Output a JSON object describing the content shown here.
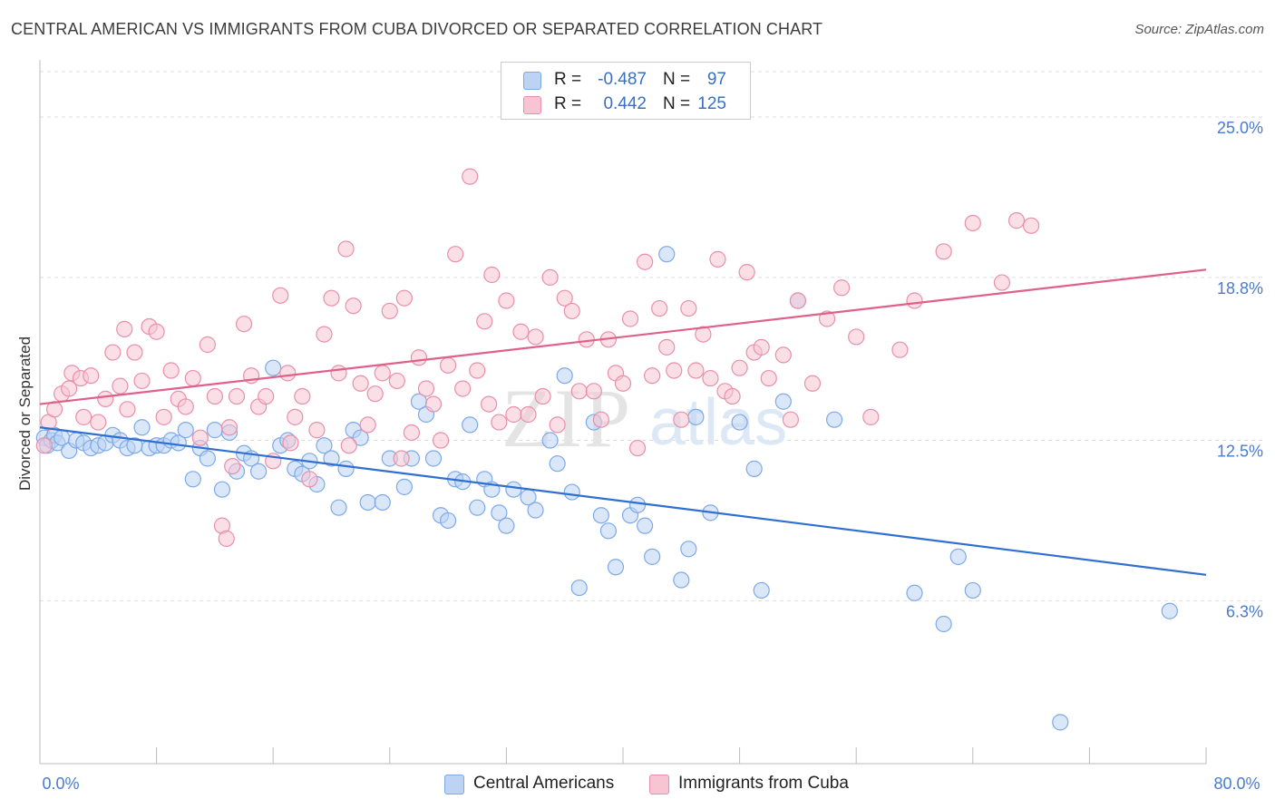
{
  "title": "CENTRAL AMERICAN VS IMMIGRANTS FROM CUBA DIVORCED OR SEPARATED CORRELATION CHART",
  "source": "Source: ZipAtlas.com",
  "watermark": {
    "zip": "ZIP",
    "atlas": "atlas"
  },
  "stats": [
    {
      "r_label": "R =",
      "r_value": "-0.487",
      "n_label": "N =",
      "n_value": "97",
      "color": "#7ea9e8",
      "fill": "#bcd3f3"
    },
    {
      "r_label": "R =",
      "r_value": "0.442",
      "n_label": "N =",
      "n_value": "125",
      "color": "#e98fab",
      "fill": "#f7c4d3"
    }
  ],
  "legend": [
    {
      "label": "Central Americans",
      "color": "#7ea9e8",
      "fill": "#bcd3f3"
    },
    {
      "label": "Immigrants from Cuba",
      "color": "#e98fab",
      "fill": "#f7c4d3"
    }
  ],
  "chart_data": {
    "type": "scatter",
    "title": "CENTRAL AMERICAN VS IMMIGRANTS FROM CUBA DIVORCED OR SEPARATED CORRELATION CHART",
    "xlabel": "",
    "ylabel": "Divorced or Separated",
    "xlim": [
      0,
      80
    ],
    "ylim": [
      0,
      27
    ],
    "x_tick_labels": [
      "0.0%",
      "80.0%"
    ],
    "y_ticks": [
      25.0,
      18.8,
      12.5,
      6.3
    ],
    "y_tick_labels": [
      "25.0%",
      "18.8%",
      "12.5%",
      "6.3%"
    ],
    "grid": "horizontal dashed",
    "legend_position": "bottom-center",
    "series": [
      {
        "name": "Central Americans",
        "color": "#7ea9e8",
        "fill": "#bcd3f3",
        "line_color": "#2f6fd1",
        "trend": {
          "x": [
            0,
            80
          ],
          "y": [
            13.0,
            7.3
          ]
        },
        "points": [
          [
            0.3,
            12.6
          ],
          [
            0.5,
            12.3
          ],
          [
            0.8,
            12.5
          ],
          [
            1.0,
            12.7
          ],
          [
            1.2,
            12.4
          ],
          [
            1.5,
            12.6
          ],
          [
            2.0,
            12.1
          ],
          [
            2.5,
            12.5
          ],
          [
            3.0,
            12.4
          ],
          [
            3.5,
            12.2
          ],
          [
            4.0,
            12.3
          ],
          [
            4.5,
            12.4
          ],
          [
            5.0,
            12.7
          ],
          [
            5.5,
            12.5
          ],
          [
            6.0,
            12.2
          ],
          [
            6.5,
            12.3
          ],
          [
            7.0,
            13.0
          ],
          [
            7.5,
            12.2
          ],
          [
            8.0,
            12.3
          ],
          [
            8.5,
            12.3
          ],
          [
            9.0,
            12.5
          ],
          [
            9.5,
            12.4
          ],
          [
            10.0,
            12.9
          ],
          [
            10.5,
            11.0
          ],
          [
            11.0,
            12.2
          ],
          [
            11.5,
            11.8
          ],
          [
            12.0,
            12.9
          ],
          [
            12.5,
            10.6
          ],
          [
            13.0,
            12.8
          ],
          [
            13.5,
            11.3
          ],
          [
            14.0,
            12.0
          ],
          [
            14.5,
            11.8
          ],
          [
            15.0,
            11.3
          ],
          [
            16.0,
            15.3
          ],
          [
            16.5,
            12.3
          ],
          [
            17.0,
            12.5
          ],
          [
            17.5,
            11.4
          ],
          [
            18.0,
            11.2
          ],
          [
            18.5,
            11.7
          ],
          [
            19.0,
            10.8
          ],
          [
            19.5,
            12.3
          ],
          [
            20.0,
            11.8
          ],
          [
            20.5,
            9.9
          ],
          [
            21.0,
            11.4
          ],
          [
            21.5,
            12.9
          ],
          [
            22.0,
            12.6
          ],
          [
            22.5,
            10.1
          ],
          [
            23.5,
            10.1
          ],
          [
            24.0,
            11.8
          ],
          [
            25.0,
            10.7
          ],
          [
            25.5,
            11.8
          ],
          [
            26.0,
            14.0
          ],
          [
            26.5,
            13.5
          ],
          [
            27.0,
            11.8
          ],
          [
            27.5,
            9.6
          ],
          [
            28.0,
            9.4
          ],
          [
            28.5,
            11.0
          ],
          [
            29.0,
            10.9
          ],
          [
            30.0,
            9.9
          ],
          [
            30.5,
            11.0
          ],
          [
            31.0,
            10.6
          ],
          [
            31.5,
            9.7
          ],
          [
            32.0,
            9.2
          ],
          [
            32.5,
            10.6
          ],
          [
            33.5,
            10.3
          ],
          [
            34.0,
            9.8
          ],
          [
            35.0,
            12.5
          ],
          [
            35.5,
            11.6
          ],
          [
            36.5,
            10.5
          ],
          [
            37.0,
            6.8
          ],
          [
            38.0,
            13.2
          ],
          [
            38.5,
            9.6
          ],
          [
            39.0,
            9.0
          ],
          [
            39.5,
            7.6
          ],
          [
            40.5,
            9.6
          ],
          [
            41.0,
            10.0
          ],
          [
            41.5,
            9.2
          ],
          [
            42.0,
            8.0
          ],
          [
            43.0,
            19.7
          ],
          [
            44.0,
            7.1
          ],
          [
            44.5,
            8.3
          ],
          [
            45.0,
            13.4
          ],
          [
            46.0,
            9.7
          ],
          [
            48.0,
            13.2
          ],
          [
            49.0,
            11.4
          ],
          [
            49.5,
            6.7
          ],
          [
            51.0,
            14.0
          ],
          [
            52.0,
            17.9
          ],
          [
            54.5,
            13.3
          ],
          [
            60.0,
            6.6
          ],
          [
            62.0,
            5.4
          ],
          [
            63.0,
            8.0
          ],
          [
            64.0,
            6.7
          ],
          [
            70.0,
            1.6
          ],
          [
            77.5,
            5.9
          ],
          [
            29.5,
            13.1
          ],
          [
            36.0,
            15.0
          ]
        ]
      },
      {
        "name": "Immigrants from Cuba",
        "color": "#e98fab",
        "fill": "#f7c4d3",
        "line_color": "#e0608a",
        "trend": {
          "x": [
            0,
            80
          ],
          "y": [
            13.9,
            19.1
          ]
        },
        "points": [
          [
            0.3,
            12.3
          ],
          [
            0.6,
            13.2
          ],
          [
            1.0,
            13.7
          ],
          [
            1.5,
            14.3
          ],
          [
            2.0,
            14.5
          ],
          [
            2.2,
            15.1
          ],
          [
            2.8,
            14.9
          ],
          [
            3.0,
            13.4
          ],
          [
            3.5,
            15.0
          ],
          [
            4.0,
            13.2
          ],
          [
            4.5,
            14.1
          ],
          [
            5.0,
            15.9
          ],
          [
            5.5,
            14.6
          ],
          [
            5.8,
            16.8
          ],
          [
            6.0,
            13.7
          ],
          [
            6.5,
            15.9
          ],
          [
            7.0,
            14.8
          ],
          [
            7.5,
            16.9
          ],
          [
            8.0,
            16.7
          ],
          [
            8.5,
            13.4
          ],
          [
            9.0,
            15.2
          ],
          [
            9.5,
            14.1
          ],
          [
            10.0,
            13.8
          ],
          [
            10.5,
            14.9
          ],
          [
            11.0,
            12.6
          ],
          [
            11.5,
            16.2
          ],
          [
            12.0,
            14.2
          ],
          [
            12.5,
            9.2
          ],
          [
            12.8,
            8.7
          ],
          [
            13.0,
            13.0
          ],
          [
            13.5,
            14.2
          ],
          [
            14.0,
            17.0
          ],
          [
            14.5,
            15.0
          ],
          [
            15.0,
            13.8
          ],
          [
            15.5,
            14.2
          ],
          [
            16.0,
            11.7
          ],
          [
            16.5,
            18.1
          ],
          [
            17.0,
            15.1
          ],
          [
            17.5,
            13.4
          ],
          [
            18.0,
            14.2
          ],
          [
            18.5,
            11.0
          ],
          [
            19.0,
            12.9
          ],
          [
            19.5,
            16.6
          ],
          [
            20.0,
            18.0
          ],
          [
            20.5,
            15.1
          ],
          [
            21.0,
            19.9
          ],
          [
            21.5,
            17.7
          ],
          [
            22.0,
            14.7
          ],
          [
            22.5,
            13.1
          ],
          [
            23.0,
            14.3
          ],
          [
            23.5,
            15.1
          ],
          [
            24.0,
            17.5
          ],
          [
            24.5,
            14.8
          ],
          [
            25.0,
            18.0
          ],
          [
            25.5,
            12.8
          ],
          [
            26.0,
            15.7
          ],
          [
            26.5,
            14.5
          ],
          [
            27.0,
            13.9
          ],
          [
            27.5,
            12.5
          ],
          [
            28.0,
            15.4
          ],
          [
            28.5,
            19.7
          ],
          [
            29.0,
            14.5
          ],
          [
            29.5,
            22.7
          ],
          [
            30.0,
            15.2
          ],
          [
            30.5,
            17.1
          ],
          [
            31.0,
            18.9
          ],
          [
            31.5,
            13.2
          ],
          [
            32.0,
            17.9
          ],
          [
            32.5,
            13.5
          ],
          [
            33.0,
            16.7
          ],
          [
            33.5,
            13.5
          ],
          [
            34.0,
            16.5
          ],
          [
            34.5,
            14.2
          ],
          [
            35.0,
            18.8
          ],
          [
            35.5,
            13.1
          ],
          [
            36.0,
            18.0
          ],
          [
            36.5,
            17.5
          ],
          [
            37.0,
            14.4
          ],
          [
            37.5,
            16.4
          ],
          [
            38.0,
            14.4
          ],
          [
            38.5,
            13.3
          ],
          [
            39.0,
            16.4
          ],
          [
            39.5,
            15.1
          ],
          [
            40.0,
            14.7
          ],
          [
            40.5,
            17.2
          ],
          [
            41.0,
            12.2
          ],
          [
            41.5,
            19.4
          ],
          [
            42.0,
            15.0
          ],
          [
            42.5,
            17.6
          ],
          [
            43.0,
            16.1
          ],
          [
            43.5,
            15.2
          ],
          [
            44.0,
            13.3
          ],
          [
            44.5,
            17.6
          ],
          [
            45.0,
            15.2
          ],
          [
            45.5,
            16.6
          ],
          [
            46.0,
            14.9
          ],
          [
            46.5,
            19.5
          ],
          [
            47.0,
            14.4
          ],
          [
            47.5,
            14.2
          ],
          [
            48.0,
            15.3
          ],
          [
            48.5,
            19.0
          ],
          [
            49.0,
            15.9
          ],
          [
            49.5,
            16.1
          ],
          [
            50.0,
            14.9
          ],
          [
            51.0,
            15.8
          ],
          [
            51.5,
            13.3
          ],
          [
            52.0,
            17.9
          ],
          [
            53.0,
            14.7
          ],
          [
            54.0,
            17.2
          ],
          [
            55.0,
            18.4
          ],
          [
            56.0,
            16.5
          ],
          [
            57.0,
            13.4
          ],
          [
            59.0,
            16.0
          ],
          [
            60.0,
            17.9
          ],
          [
            62.0,
            19.8
          ],
          [
            64.0,
            20.9
          ],
          [
            66.0,
            18.6
          ],
          [
            67.0,
            21.0
          ],
          [
            68.0,
            20.8
          ],
          [
            21.2,
            12.3
          ],
          [
            24.8,
            11.8
          ],
          [
            17.2,
            12.4
          ],
          [
            13.2,
            11.5
          ],
          [
            30.8,
            13.9
          ]
        ]
      }
    ]
  }
}
